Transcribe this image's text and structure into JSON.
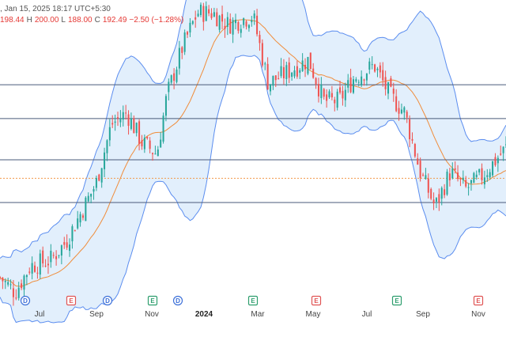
{
  "header": {
    "time_text": ", Jan 15, 2025 18:17 UTC+5:30",
    "o_value": "198.44",
    "h_label": "H",
    "h_value": "200.00",
    "l_label": "L",
    "l_value": "188.00",
    "c_label": "C",
    "c_value": "192.49",
    "change": "−2.50 (−1.28%)"
  },
  "colors": {
    "up": "#26a69a",
    "down": "#ef5350",
    "band_fill": "#d6e8fb",
    "band_line": "#5b8def",
    "basis": "#f08c3a",
    "hline": "#4a5a7a",
    "dotted": "#f2994a",
    "earnings": "#e05454",
    "dividend": "#3b6fd8",
    "split": "#2e9e6e"
  },
  "chart_data": {
    "type": "candlestick",
    "title": "",
    "x_ticks": [
      "Jul",
      "Sep",
      "Nov",
      "2024",
      "Mar",
      "May",
      "Jul",
      "Sep",
      "Nov"
    ],
    "y_range_relative": [
      0,
      1
    ],
    "price_path_relative": [
      [
        0,
        0.1
      ],
      [
        0.03,
        0.05
      ],
      [
        0.06,
        0.14
      ],
      [
        0.1,
        0.16
      ],
      [
        0.13,
        0.22
      ],
      [
        0.16,
        0.32
      ],
      [
        0.19,
        0.42
      ],
      [
        0.22,
        0.62
      ],
      [
        0.25,
        0.66
      ],
      [
        0.28,
        0.56
      ],
      [
        0.31,
        0.52
      ],
      [
        0.33,
        0.72
      ],
      [
        0.36,
        0.88
      ],
      [
        0.39,
        1.0
      ],
      [
        0.42,
        1.0
      ],
      [
        0.45,
        0.96
      ],
      [
        0.5,
        0.99
      ],
      [
        0.53,
        0.76
      ],
      [
        0.57,
        0.8
      ],
      [
        0.61,
        0.84
      ],
      [
        0.64,
        0.7
      ],
      [
        0.67,
        0.7
      ],
      [
        0.7,
        0.78
      ],
      [
        0.74,
        0.82
      ],
      [
        0.77,
        0.72
      ],
      [
        0.8,
        0.66
      ],
      [
        0.83,
        0.46
      ],
      [
        0.86,
        0.34
      ],
      [
        0.89,
        0.46
      ],
      [
        0.92,
        0.4
      ],
      [
        0.95,
        0.44
      ],
      [
        0.98,
        0.5
      ],
      [
        1.0,
        0.54
      ]
    ],
    "horizontal_levels_relative": [
      0.755,
      0.64,
      0.5,
      0.355
    ],
    "dotted_level_relative": 0.437
  },
  "event_markers": [
    {
      "type": "dividend",
      "letter": "D"
    },
    {
      "type": "earnings",
      "letter": "E"
    },
    {
      "type": "dividend",
      "letter": "D"
    },
    {
      "type": "split",
      "letter": "E"
    },
    {
      "type": "dividend",
      "letter": "D"
    },
    {
      "type": "split",
      "letter": "E"
    },
    {
      "type": "earnings",
      "letter": "E"
    },
    {
      "type": "split",
      "letter": "E"
    },
    {
      "type": "earnings",
      "letter": "E"
    }
  ]
}
